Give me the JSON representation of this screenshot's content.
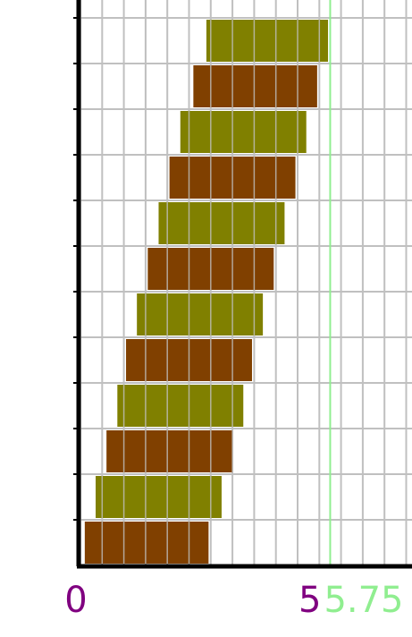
{
  "chart_data": {
    "type": "bar",
    "orientation": "horizontal-floating",
    "bars": [
      {
        "start": 2.9,
        "end": 5.7,
        "color": "#808000"
      },
      {
        "start": 2.6,
        "end": 5.45,
        "color": "#804000"
      },
      {
        "start": 2.3,
        "end": 5.2,
        "color": "#808000"
      },
      {
        "start": 2.05,
        "end": 4.95,
        "color": "#804000"
      },
      {
        "start": 1.8,
        "end": 4.7,
        "color": "#808000"
      },
      {
        "start": 1.55,
        "end": 4.45,
        "color": "#804000"
      },
      {
        "start": 1.3,
        "end": 4.2,
        "color": "#808000"
      },
      {
        "start": 1.05,
        "end": 3.95,
        "color": "#804000"
      },
      {
        "start": 0.85,
        "end": 3.75,
        "color": "#808000"
      },
      {
        "start": 0.6,
        "end": 3.5,
        "color": "#804000"
      },
      {
        "start": 0.35,
        "end": 3.25,
        "color": "#808000"
      },
      {
        "start": 0.1,
        "end": 2.95,
        "color": "#804000"
      }
    ],
    "x_tick_labels": [
      {
        "value": 0,
        "text": "0",
        "color": "#800080"
      },
      {
        "value": 5,
        "text": "5",
        "color": "#800080"
      }
    ],
    "reference_line": {
      "value": 5.75,
      "text": "5.75",
      "color": "#90ee90"
    },
    "xlim": [
      0,
      7.75
    ],
    "grid": true,
    "grid_step": 0.5,
    "colors": {
      "bar_a": "#808000",
      "bar_b": "#804000",
      "grid": "#c0c0c0",
      "axis": "#000000"
    }
  }
}
